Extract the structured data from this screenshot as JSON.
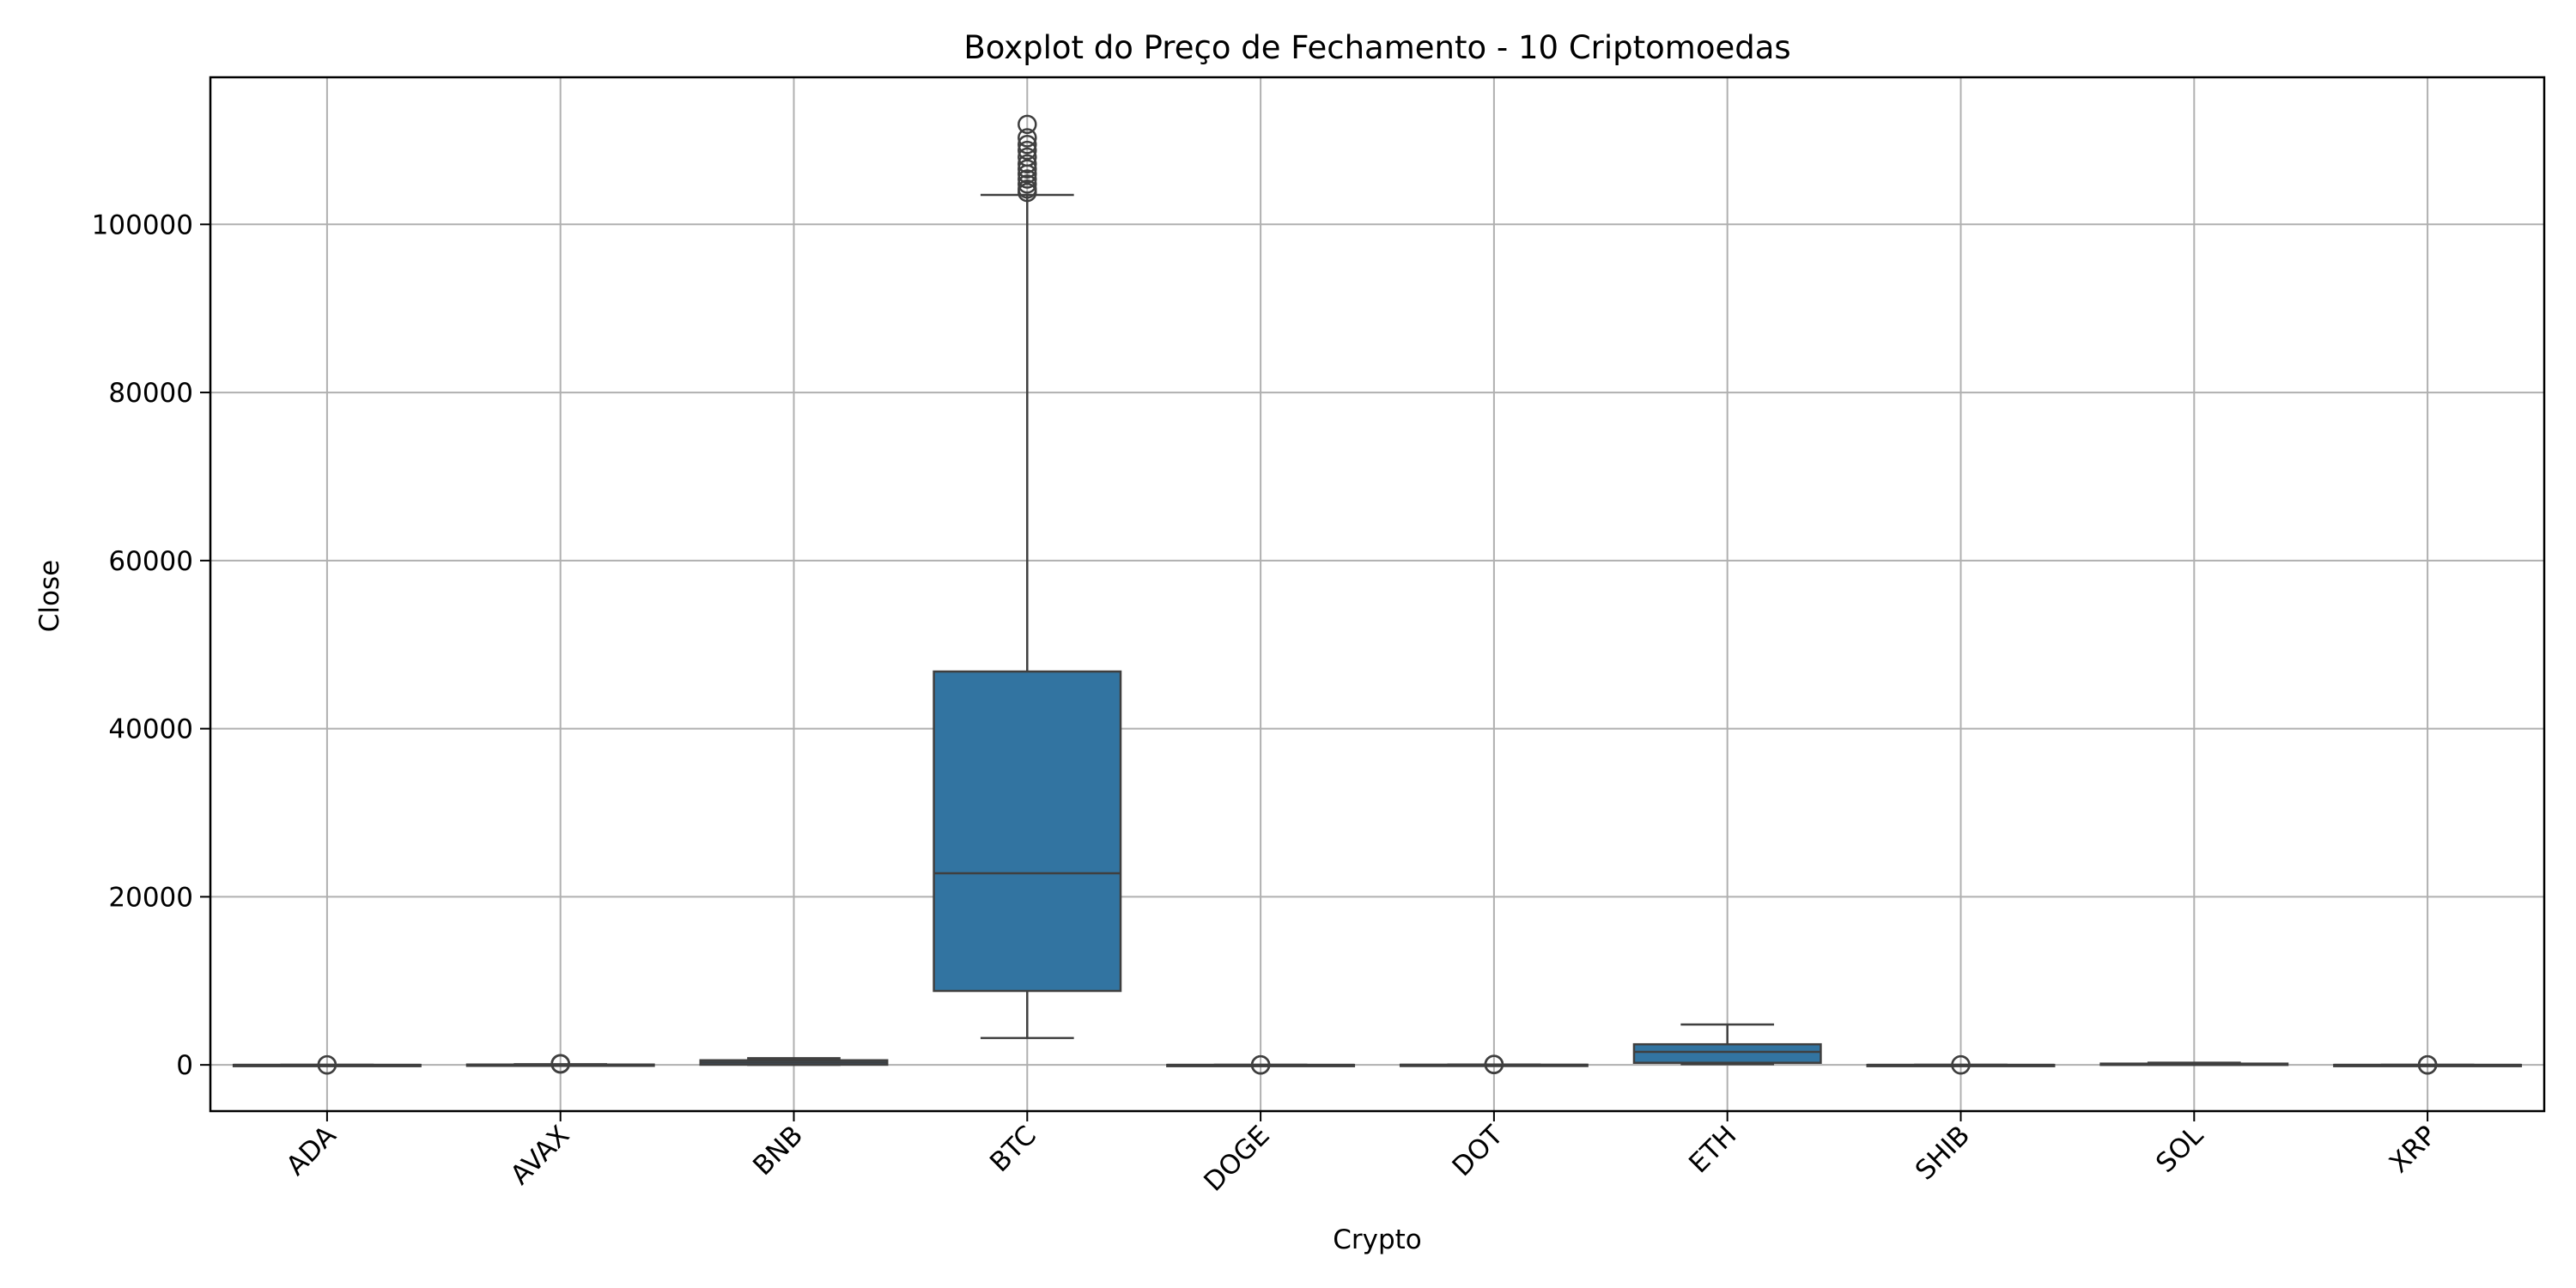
{
  "chart_data": {
    "type": "box",
    "title": "Boxplot do Preço de Fechamento - 10 Criptomoedas",
    "xlabel": "Crypto",
    "ylabel": "Close",
    "ylim": [
      -5500,
      117500
    ],
    "yticks": [
      0,
      20000,
      40000,
      60000,
      80000,
      100000
    ],
    "grid": true,
    "box_color": "#3274a1",
    "edge_color": "#3f3f3f",
    "categories": [
      "ADA",
      "AVAX",
      "BNB",
      "BTC",
      "DOGE",
      "DOT",
      "ETH",
      "SHIB",
      "SOL",
      "XRP"
    ],
    "boxes": [
      {
        "name": "ADA",
        "whislo": 0.02,
        "q1": 0.1,
        "med": 0.3,
        "q3": 0.6,
        "whishi": 1.2,
        "fliers": [
          2.5,
          3.0
        ]
      },
      {
        "name": "AVAX",
        "whislo": 3,
        "q1": 15,
        "med": 25,
        "q3": 40,
        "whishi": 80,
        "fliers": [
          100,
          130,
          145
        ]
      },
      {
        "name": "BNB",
        "whislo": 1,
        "q1": 20,
        "med": 280,
        "q3": 550,
        "whishi": 800,
        "fliers": []
      },
      {
        "name": "BTC",
        "whislo": 3200,
        "q1": 8800,
        "med": 22800,
        "q3": 46800,
        "whishi": 103500,
        "fliers": [
          103800,
          104200,
          104800,
          105400,
          106000,
          106600,
          107200,
          108000,
          108800,
          109500,
          110300,
          111900
        ]
      },
      {
        "name": "DOGE",
        "whislo": 0.0002,
        "q1": 0.003,
        "med": 0.06,
        "q3": 0.12,
        "whishi": 0.3,
        "fliers": [
          0.5,
          0.6,
          0.7
        ]
      },
      {
        "name": "DOT",
        "whislo": 3,
        "q1": 5,
        "med": 7,
        "q3": 20,
        "whishi": 40,
        "fliers": [
          45,
          50,
          55
        ]
      },
      {
        "name": "ETH",
        "whislo": 85,
        "q1": 250,
        "med": 1550,
        "q3": 2450,
        "whishi": 4800,
        "fliers": []
      },
      {
        "name": "SHIB",
        "whislo": 0,
        "q1": 0,
        "med": 0,
        "q3": 0,
        "whishi": 0,
        "fliers": [
          5e-05,
          8e-05
        ]
      },
      {
        "name": "SOL",
        "whislo": 1,
        "q1": 20,
        "med": 70,
        "q3": 150,
        "whishi": 260,
        "fliers": []
      },
      {
        "name": "XRP",
        "whislo": 0.15,
        "q1": 0.3,
        "med": 0.45,
        "q3": 0.65,
        "whishi": 1.4,
        "fliers": [
          2.0,
          2.5,
          3.2
        ]
      }
    ]
  }
}
